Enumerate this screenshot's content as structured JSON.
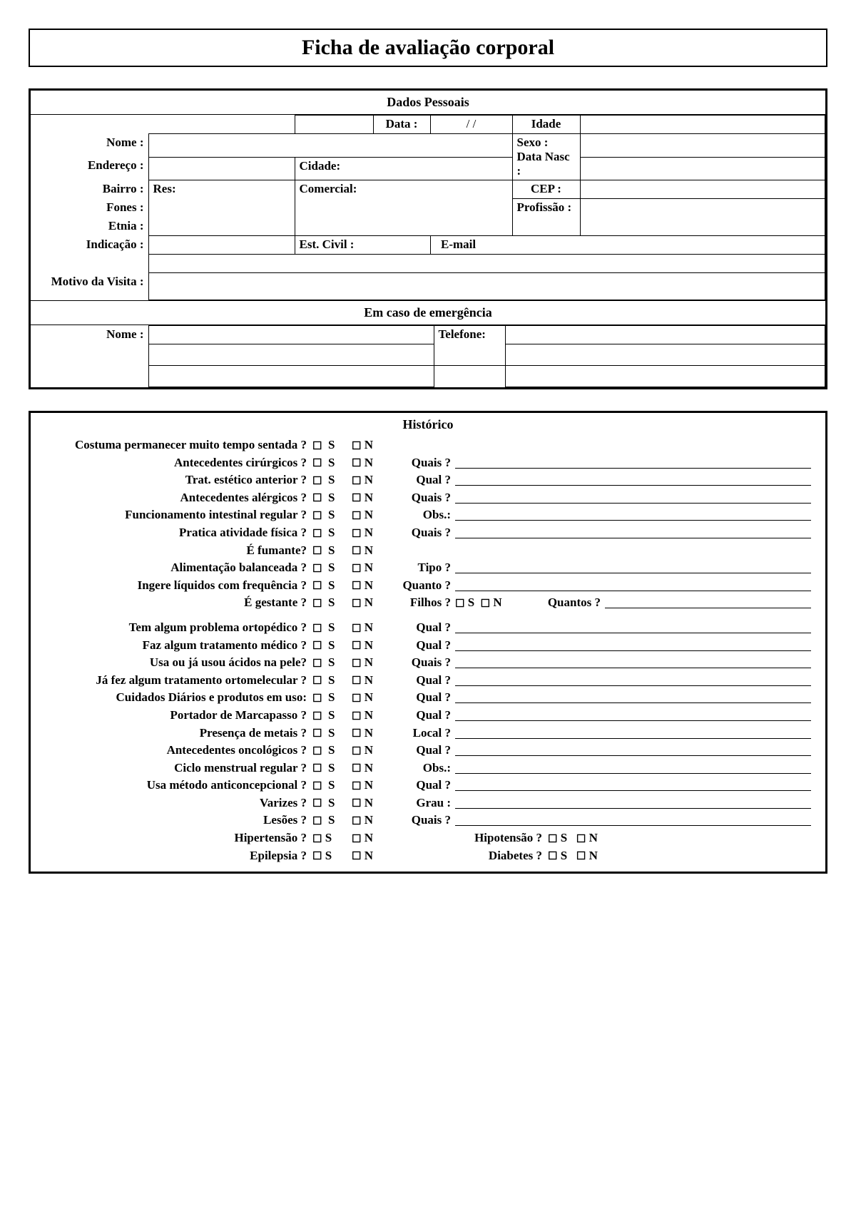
{
  "page": {
    "title": "Ficha de avaliação corporal",
    "background_color": "#ffffff",
    "border_color": "#000000",
    "font_family": "Times New Roman"
  },
  "dados": {
    "section_title": "Dados Pessoais",
    "data_label": "Data :",
    "data_value": "/     /",
    "idade_label": "Idade",
    "nome_label": "Nome :",
    "sexo_label": "Sexo : Data Nasc :",
    "endereco_label": "Endereço :",
    "cidade_label": "Cidade:",
    "cep_label": "CEP :",
    "bairro_label": "Bairro :",
    "res_label": "Res:",
    "comercial_label": "Comercial:",
    "profissao_label": "Profissão :",
    "fones_label": "Fones :",
    "etnia_label": "Etnia :",
    "estcivil_label": "Est. Civil :",
    "email_label": "E-mail",
    "indicacao_label": "Indicação :",
    "motivo_label": "Motivo da Visita :"
  },
  "emerg": {
    "section_title": "Em caso de emergência",
    "nome_label": "Nome :",
    "tel_label": "Telefone:"
  },
  "hist": {
    "section_title": "Histórico",
    "s": "S",
    "n": "N",
    "rows": [
      {
        "q": "Costuma permanecer muito tempo sentada ?",
        "ext": ""
      },
      {
        "q": "Antecedentes cirúrgicos ?",
        "ext": "Quais ?"
      },
      {
        "q": "Trat. estético anterior ?",
        "ext": "Qual ?"
      },
      {
        "q": "Antecedentes alérgicos ?",
        "ext": "Quais ?"
      },
      {
        "q": "Funcionamento intestinal regular ?",
        "ext": "Obs.:"
      },
      {
        "q": "Pratica atividade física ?",
        "ext": "Quais ?"
      },
      {
        "q": "É fumante?",
        "ext": ""
      },
      {
        "q": "Alimentação balanceada ?",
        "ext": "Tipo ?"
      },
      {
        "q": "Ingere líquidos com frequência ?",
        "ext": "Quanto ?"
      },
      {
        "q": "É gestante ?",
        "ext": "Filhos ?",
        "filhos": true,
        "quantos": "Quantos ?"
      },
      {
        "q": "Tem algum problema ortopédico ?",
        "ext": "Qual ?"
      },
      {
        "q": "Faz algum tratamento médico ?",
        "ext": "Qual ?"
      },
      {
        "q": "Usa ou já usou ácidos na pele?",
        "ext": "Quais ?"
      },
      {
        "q": "Já fez algum tratamento ortomelecular ?",
        "ext": "Qual ?"
      },
      {
        "q": "Cuidados Diários e produtos em uso:",
        "ext": "Qual ?"
      },
      {
        "q": "Portador de Marcapasso ?",
        "ext": "Qual ?"
      },
      {
        "q": "Presença de metais ?",
        "ext": "Local ?"
      },
      {
        "q": "Antecedentes oncológicos ?",
        "ext": "Qual ?"
      },
      {
        "q": "Ciclo  menstrual regular ?",
        "ext": "Obs.:"
      },
      {
        "q": "Usa método anticoncepcional ?",
        "ext": "Qual ?"
      },
      {
        "q": "Varizes ?",
        "ext": "Grau :"
      },
      {
        "q": "Lesões ?",
        "ext": "Quais ?"
      }
    ],
    "pair1": {
      "left": "Hipertensão ?",
      "right": "Hipotensão ?"
    },
    "pair2": {
      "left": "Epilepsia ?",
      "right": "Diabetes ?"
    }
  }
}
